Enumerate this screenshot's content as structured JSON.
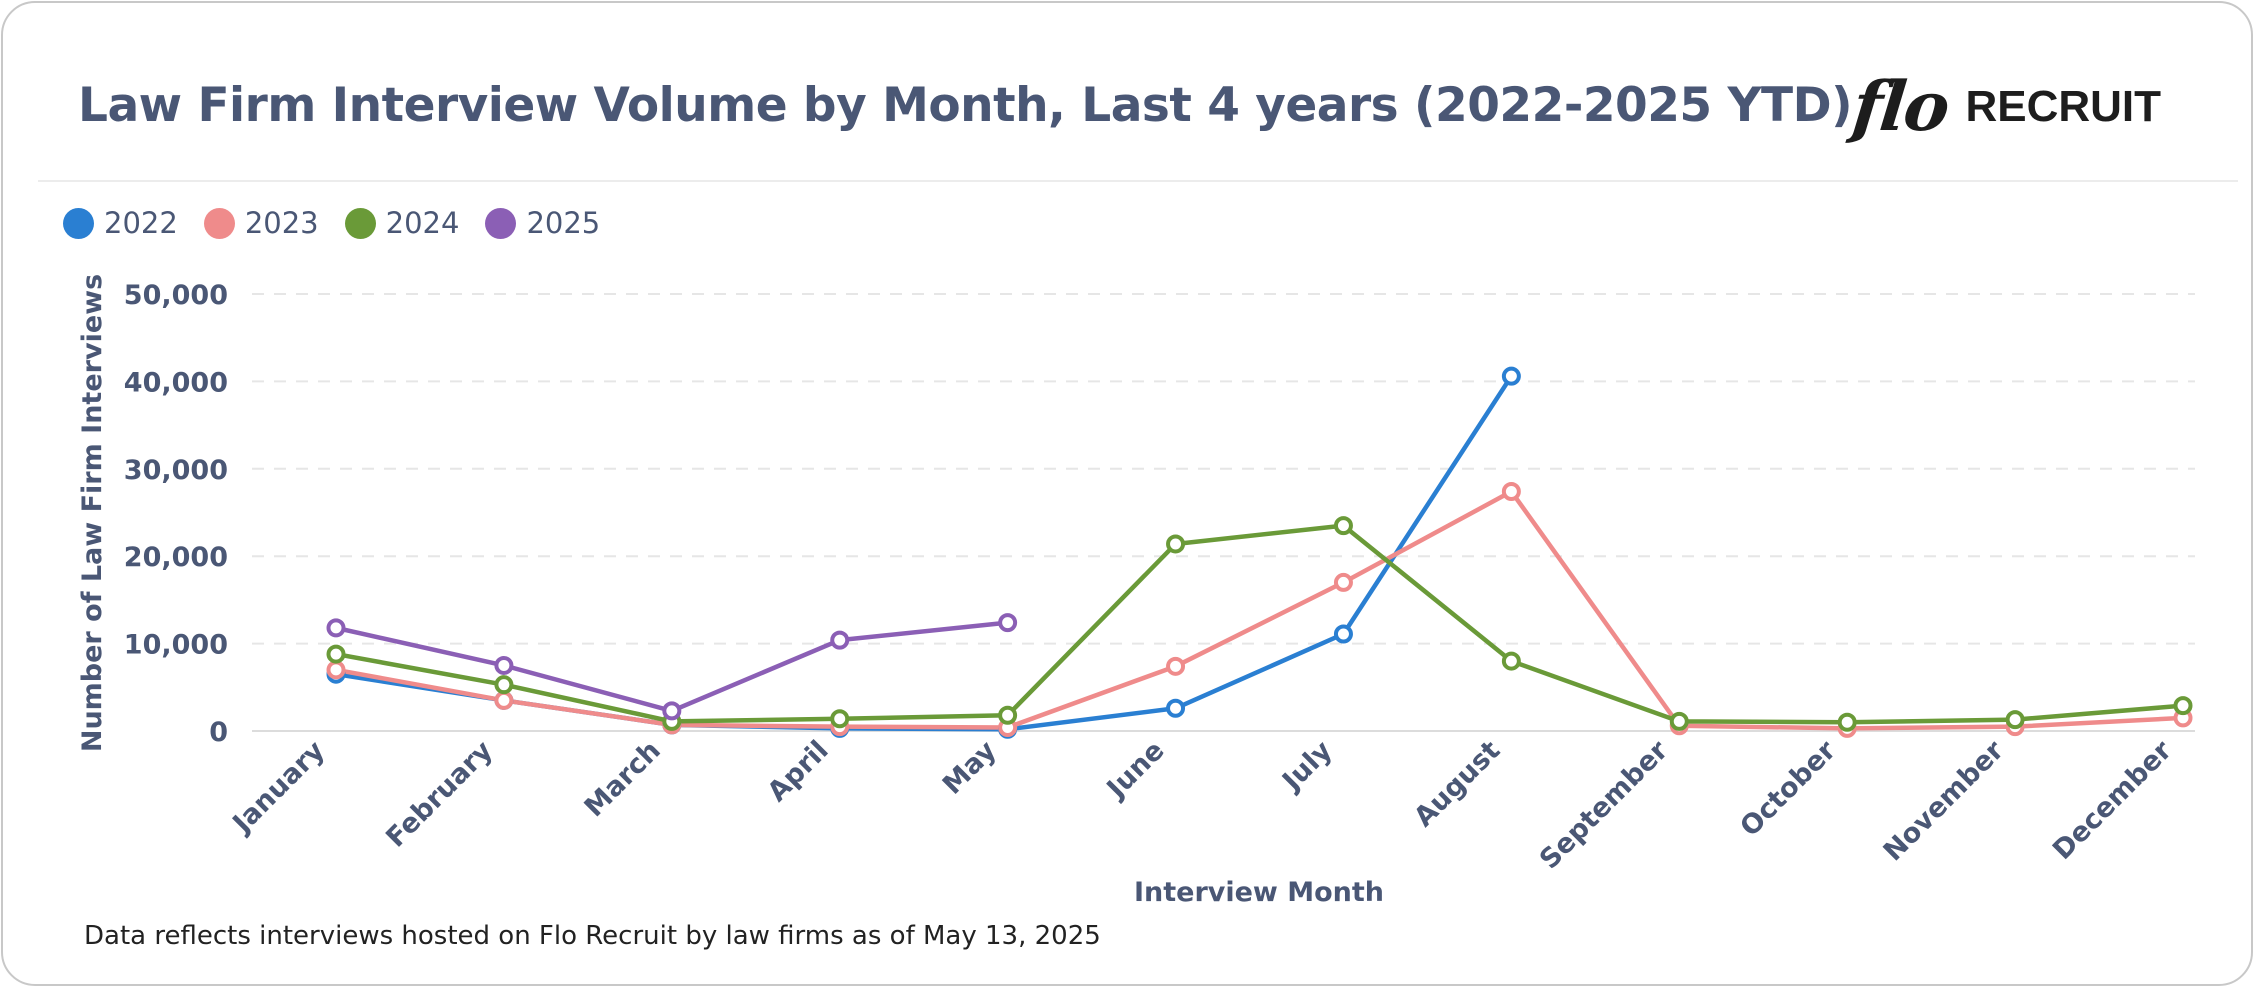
{
  "header": {
    "title": "Law Firm Interview Volume by Month, Last 4 years (2022-2025 YTD)",
    "logo_script": "flo",
    "logo_word": "RECRUIT"
  },
  "footnote": "Data reflects interviews hosted on Flo Recruit by law firms as of May 13, 2025",
  "chart_data": {
    "type": "line",
    "title": "Law Firm Interview Volume by Month, Last 4 years (2022-2025 YTD)",
    "xlabel": "Interview Month",
    "ylabel": "Number of Law Firm Interviews",
    "ylim": [
      0,
      50000
    ],
    "yticks": [
      0,
      10000,
      20000,
      30000,
      40000,
      50000
    ],
    "ytick_labels": [
      "0",
      "10,000",
      "20,000",
      "30,000",
      "40,000",
      "50,000"
    ],
    "grid": true,
    "legend_position": "top-left",
    "categories": [
      "January",
      "February",
      "March",
      "April",
      "May",
      "June",
      "July",
      "August",
      "September",
      "October",
      "November",
      "December"
    ],
    "series": [
      {
        "name": "2022",
        "color": "#2a7fd2",
        "values": [
          6500,
          3500,
          700,
          300,
          200,
          2600,
          11100,
          40600,
          null,
          null,
          null,
          null
        ]
      },
      {
        "name": "2023",
        "color": "#ef8b8b",
        "values": [
          7000,
          3500,
          700,
          500,
          400,
          7400,
          17000,
          27400,
          600,
          300,
          500,
          1500
        ]
      },
      {
        "name": "2024",
        "color": "#6a9a38",
        "values": [
          8800,
          5300,
          1100,
          1400,
          1800,
          21400,
          23500,
          8000,
          1100,
          1000,
          1300,
          2900
        ]
      },
      {
        "name": "2025",
        "color": "#8b5fb5",
        "values": [
          11800,
          7500,
          2300,
          10400,
          12400,
          null,
          null,
          null,
          null,
          null,
          null,
          null
        ]
      }
    ]
  }
}
